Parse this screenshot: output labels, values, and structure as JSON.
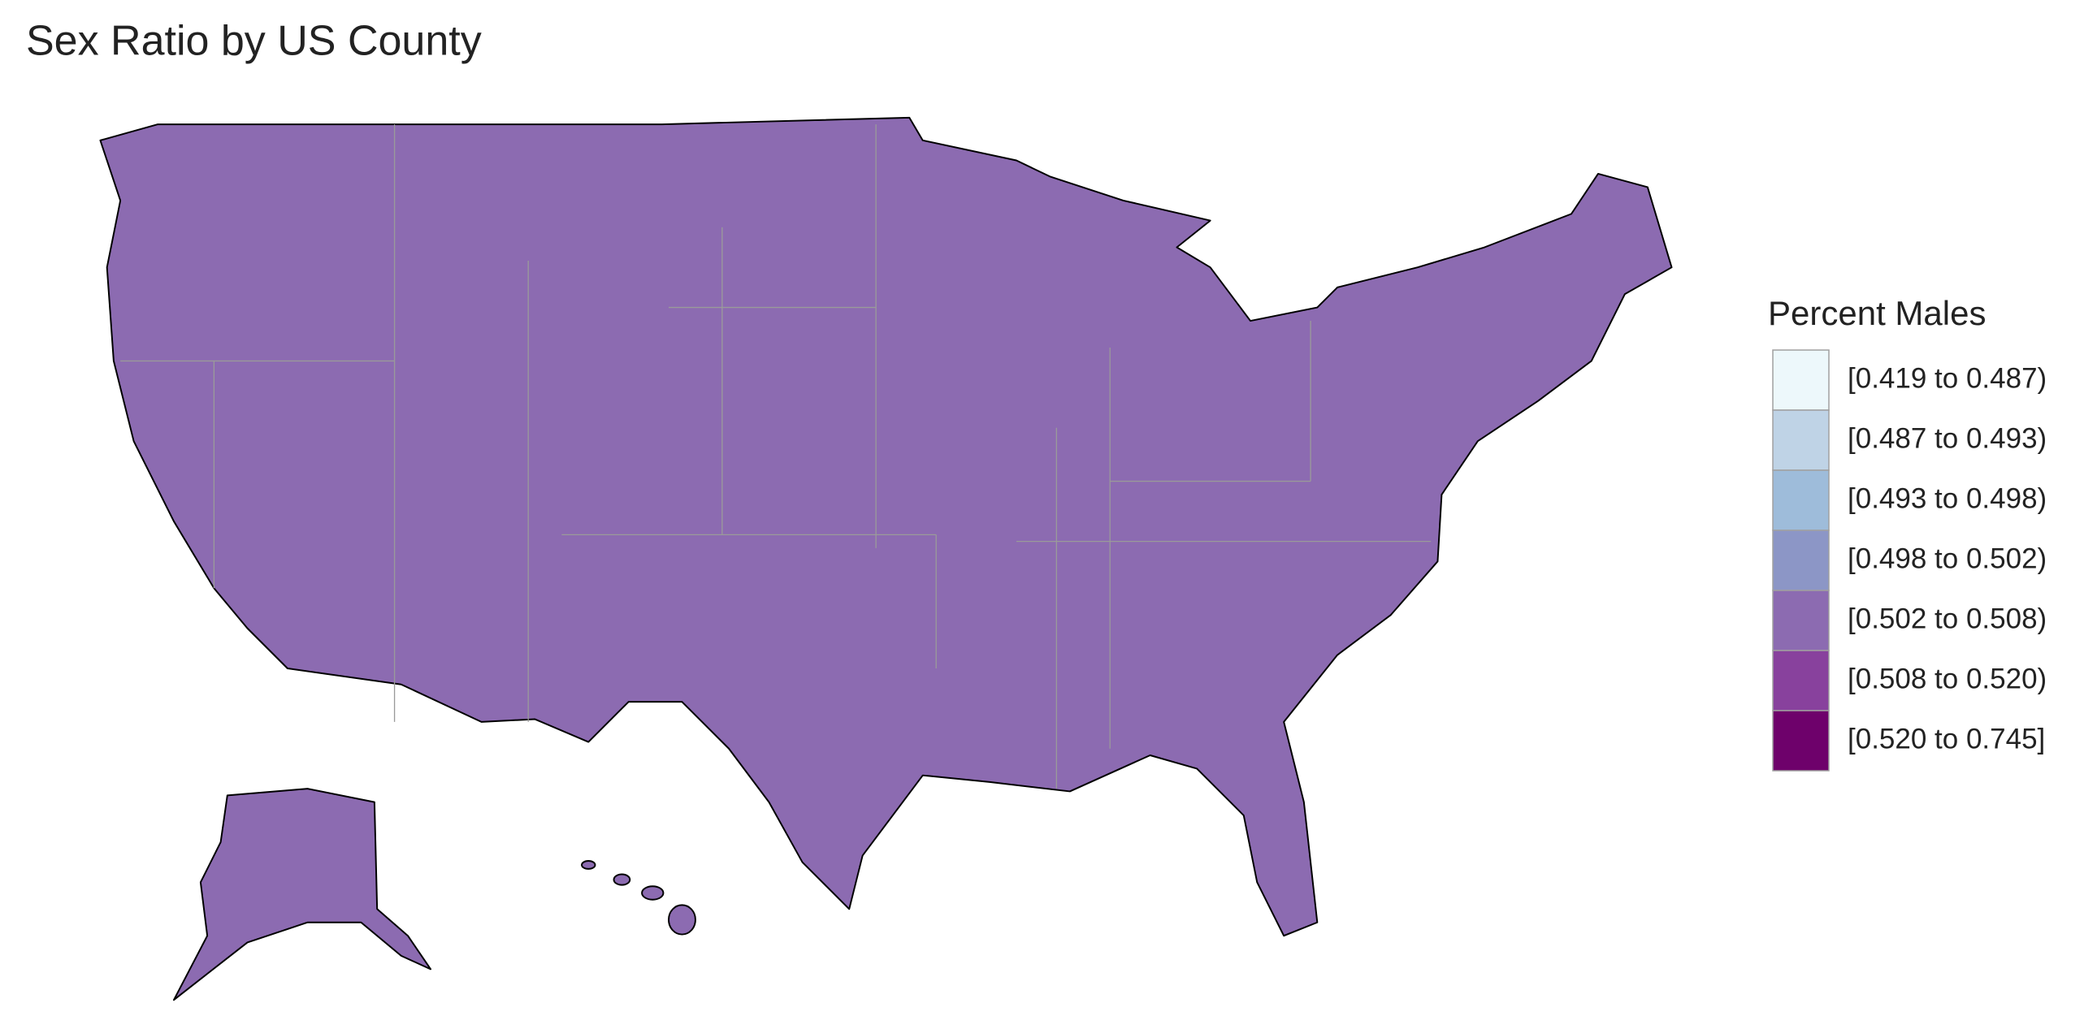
{
  "chart_data": {
    "type": "choropleth",
    "title": "Sex Ratio by US County",
    "legend": {
      "title": "Percent Males",
      "labels": [
        "[0.419 to 0.487)",
        "[0.487 to 0.493)",
        "[0.493 to 0.498)",
        "[0.498 to 0.502)",
        "[0.502 to 0.508)",
        "[0.508 to 0.520)",
        "[0.520 to 0.745]"
      ],
      "colors": [
        "#edf8fb",
        "#bfd3e6",
        "#9ebcda",
        "#8c96c6",
        "#8c6bb1",
        "#88419d",
        "#6e016b"
      ]
    }
  }
}
